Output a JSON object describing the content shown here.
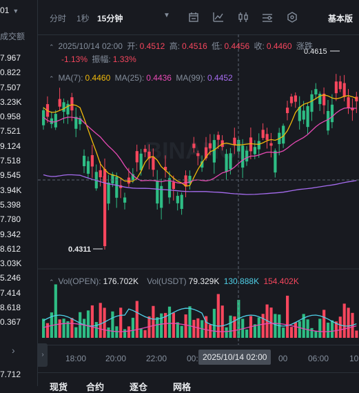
{
  "left_panel": {
    "pair_suffix": "01",
    "column_title": "成交额",
    "values": [
      "7.967",
      "0.822",
      "7.507",
      "3.23K",
      "0.958",
      "7.521",
      "9.124",
      "7.518",
      "9.545",
      "3.94K",
      "5.398",
      "7.780",
      "9.342",
      "8.612",
      "3.03K",
      "5.246",
      "7.414",
      "8.618",
      "0.367"
    ],
    "bottom_value": "7.712"
  },
  "toolbar": {
    "intervals": [
      "分时",
      "1秒",
      "15分钟"
    ],
    "active_interval": "15分钟",
    "icons": [
      "chevron-down-icon",
      "candle-settings-icon",
      "indicator-icon",
      "chart-type-icon",
      "drawing-icon",
      "hexagon-settings-icon"
    ],
    "view_mode": "基本版"
  },
  "ohlc": {
    "datetime": "2025/10/14 02:00",
    "open_label": "开:",
    "open": "0.4512",
    "high_label": "高:",
    "high": "0.4516",
    "low_label": "低:",
    "low": "0.4456",
    "close_label": "收:",
    "close": "0.4460",
    "change_label": "涨跌",
    "change_pct": "-1.13%",
    "amplitude_label": "振幅:",
    "amplitude": "1.33%"
  },
  "ma": {
    "ma7_label": "MA(7):",
    "ma7": "0.4460",
    "ma25_label": "MA(25):",
    "ma25": "0.4436",
    "ma99_label": "MA(99):",
    "ma99": "0.4452"
  },
  "price_marks": {
    "high_mark": "0.4615",
    "low_mark": "0.4311"
  },
  "volume": {
    "open_label": "Vol(OPEN):",
    "open": "176.702K",
    "usdt_label": "Vol(USDT)",
    "usdt": "79.329K",
    "ma5": "130.888K",
    "ma10": "154.402K"
  },
  "x_axis": {
    "ticks": [
      "18:00",
      "20:00",
      "22:00",
      "00:",
      "00",
      "06:00",
      "10"
    ],
    "crosshair_label": "2025/10/14 02:00"
  },
  "bottom_tabs": [
    "现货",
    "合约",
    "逐仓",
    "网格"
  ],
  "colors": {
    "up": "#2ebd85",
    "down": "#f6465d",
    "ma7": "#f0b90b",
    "ma25": "#e84ab5",
    "ma99": "#a66cf0",
    "background": "#181a20"
  },
  "watermark": "BINANCE"
}
